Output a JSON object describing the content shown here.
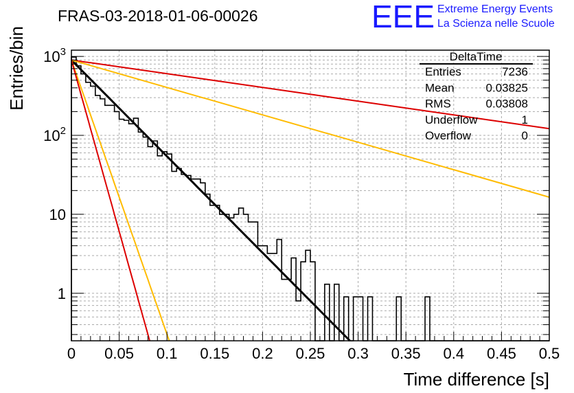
{
  "logo": {
    "mark": "EEE",
    "line1": "Extreme Energy Events",
    "line2": "La Scienza nelle Scuole",
    "color": "#1a1aff"
  },
  "chart_data": {
    "type": "histogram",
    "title": "FRAS-03-2018-01-06-00026",
    "xlabel": "Time difference [s]",
    "ylabel": "Entries/bin",
    "xlim": [
      0,
      0.5
    ],
    "ylim": [
      0.25,
      1200
    ],
    "y_scale": "log",
    "grid": true,
    "x_ticks": [
      0,
      0.05,
      0.1,
      0.15,
      0.2,
      0.25,
      0.3,
      0.35,
      0.4,
      0.45,
      0.5
    ],
    "x_tick_labels": [
      "0",
      "0.05",
      "0.1",
      "0.15",
      "0.2",
      "0.25",
      "0.3",
      "0.35",
      "0.4",
      "0.45",
      "0.5"
    ],
    "y_ticks": [
      {
        "value": 1,
        "label": "1"
      },
      {
        "value": 10,
        "label": "10"
      },
      {
        "value": 100,
        "label": "10",
        "exponent": "2"
      },
      {
        "value": 1000,
        "label": "10",
        "exponent": "3"
      }
    ],
    "histogram": {
      "name": "DeltaTime",
      "color": "#000000",
      "bin_width": 0.005,
      "bin_start": 0,
      "counts": [
        980,
        760,
        600,
        470,
        420,
        320,
        290,
        240,
        240,
        200,
        160,
        155,
        140,
        165,
        110,
        95,
        72,
        85,
        55,
        62,
        58,
        35,
        38,
        32,
        31,
        28,
        28,
        25,
        18,
        13,
        13,
        10,
        10,
        9,
        10,
        12,
        10,
        8,
        8,
        4,
        4,
        3.2,
        3.2,
        4.8,
        1.5,
        1.5,
        2.8,
        0.8,
        2.5,
        3.5,
        2.5,
        0,
        0,
        1.3,
        0,
        1.3,
        0,
        0.9,
        0,
        0.9,
        0.9,
        0,
        0.9,
        0,
        0,
        0,
        0,
        0,
        0.9,
        0,
        0,
        0,
        0,
        0,
        0.9,
        0,
        0,
        0,
        0,
        0,
        0,
        0,
        0,
        0,
        0,
        0,
        0,
        0,
        0,
        0,
        0,
        0,
        0,
        0,
        0,
        0,
        0,
        0,
        0,
        0
      ]
    },
    "fits": [
      {
        "name": "fit",
        "color": "#000000",
        "amplitude": 900,
        "decay": 28.1,
        "width": 3
      },
      {
        "name": "red-shallow",
        "color": "#dd0000",
        "amplitude": 900,
        "decay": 4.0,
        "width": 2
      },
      {
        "name": "orange-shallow",
        "color": "#ffbb00",
        "amplitude": 900,
        "decay": 8.0,
        "width": 2
      },
      {
        "name": "orange-steep",
        "color": "#ffbb00",
        "amplitude": 900,
        "decay": 80.0,
        "width": 2
      },
      {
        "name": "red-steep",
        "color": "#dd0000",
        "amplitude": 900,
        "decay": 100.0,
        "width": 2
      }
    ],
    "stats": {
      "title": "DeltaTime",
      "rows": [
        {
          "label": "Entries",
          "value": "7236"
        },
        {
          "label": "Mean",
          "value": "0.03825"
        },
        {
          "label": "RMS",
          "value": "0.03808"
        },
        {
          "label": "Underflow",
          "value": "1"
        },
        {
          "label": "Overflow",
          "value": "0"
        }
      ]
    }
  }
}
